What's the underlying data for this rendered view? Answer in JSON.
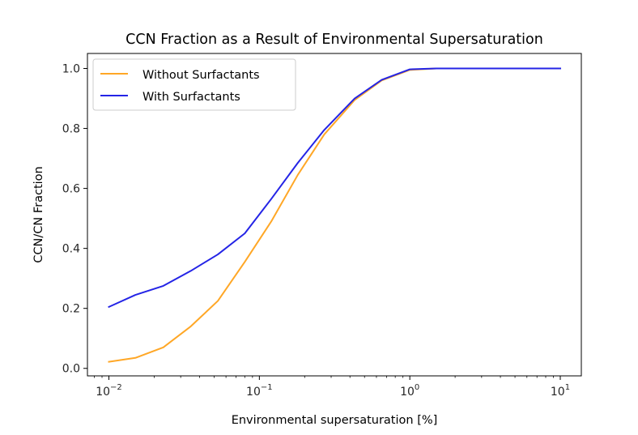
{
  "chart_data": {
    "type": "line",
    "title": "CCN Fraction as a Result of Environmental Supersaturation",
    "xlabel": "Environmental supersaturation [%]",
    "ylabel": "CCN/CN Fraction",
    "xscale": "log",
    "xlim": [
      0.0072,
      13.8
    ],
    "ylim": [
      -0.025,
      1.05
    ],
    "xticks": [
      {
        "value": 0.01,
        "base": "10",
        "exp": "−2"
      },
      {
        "value": 0.1,
        "base": "10",
        "exp": "−1"
      },
      {
        "value": 1,
        "base": "10",
        "exp": "0"
      },
      {
        "value": 10,
        "base": "10",
        "exp": "1"
      }
    ],
    "yticks": [
      {
        "value": 0.0,
        "label": "0.0"
      },
      {
        "value": 0.2,
        "label": "0.2"
      },
      {
        "value": 0.4,
        "label": "0.4"
      },
      {
        "value": 0.6,
        "label": "0.6"
      },
      {
        "value": 0.8,
        "label": "0.8"
      },
      {
        "value": 1.0,
        "label": "1.0"
      }
    ],
    "grid": false,
    "legend_position": "top-left",
    "series": [
      {
        "name": "Without Surfactants",
        "color": "#ffa726",
        "x": [
          0.01,
          0.015,
          0.023,
          0.035,
          0.053,
          0.08,
          0.12,
          0.18,
          0.27,
          0.43,
          0.65,
          1.0,
          1.5,
          10
        ],
        "y": [
          0.022,
          0.035,
          0.07,
          0.14,
          0.225,
          0.355,
          0.49,
          0.645,
          0.78,
          0.895,
          0.96,
          0.995,
          1.0,
          1.0
        ]
      },
      {
        "name": "With Surfactants",
        "color": "#2424e6",
        "x": [
          0.01,
          0.015,
          0.023,
          0.035,
          0.053,
          0.08,
          0.12,
          0.18,
          0.27,
          0.43,
          0.65,
          1.0,
          1.5,
          10
        ],
        "y": [
          0.205,
          0.245,
          0.275,
          0.325,
          0.38,
          0.45,
          0.565,
          0.685,
          0.795,
          0.9,
          0.962,
          0.997,
          1.0,
          1.0
        ]
      }
    ]
  }
}
